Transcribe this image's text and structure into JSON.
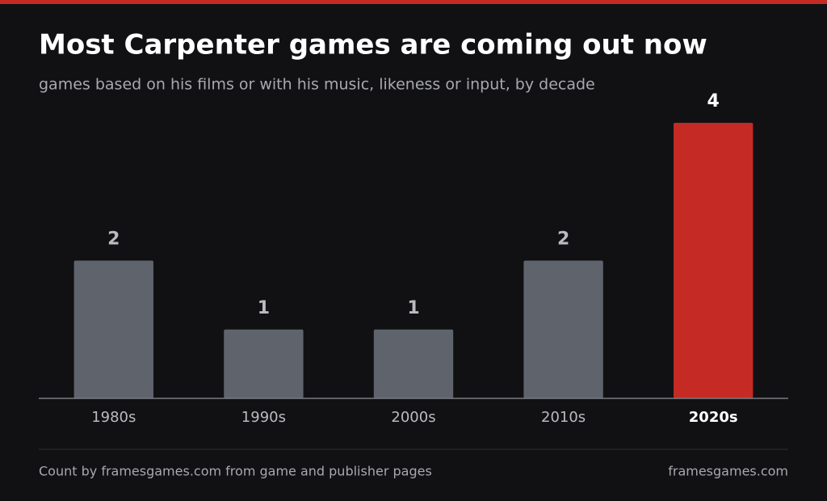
{
  "chart_data": {
    "type": "bar",
    "title": "Most Carpenter games are coming out now",
    "subtitle": "games based on his films or with his music, likeness or input, by decade",
    "categories": [
      "1980s",
      "1990s",
      "2000s",
      "2010s",
      "2020s"
    ],
    "values": [
      2,
      1,
      1,
      2,
      4
    ],
    "colors": [
      "#5f636b",
      "#5f636b",
      "#5f636b",
      "#5f636b",
      "#c62a24"
    ],
    "ylim": [
      0,
      4
    ],
    "source": "Count by framesgames.com from game and publisher pages",
    "credit": "framesgames.com"
  }
}
